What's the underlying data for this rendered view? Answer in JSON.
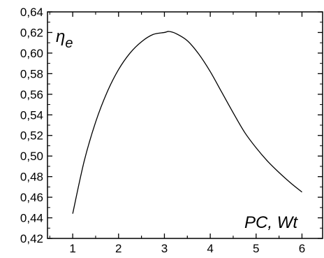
{
  "chart_data": {
    "type": "line",
    "ylabel_symbol": "η",
    "ylabel_subscript": "e",
    "xlabel": "PC, Wt",
    "xlim": [
      0.45,
      6.45
    ],
    "ylim": [
      0.42,
      0.64
    ],
    "xticks": [
      1,
      2,
      3,
      4,
      5,
      6
    ],
    "xtick_labels": [
      "1",
      "2",
      "3",
      "4",
      "5",
      "6"
    ],
    "yticks": [
      0.42,
      0.44,
      0.46,
      0.48,
      0.5,
      0.52,
      0.54,
      0.56,
      0.58,
      0.6,
      0.62,
      0.64
    ],
    "ytick_labels": [
      "0,42",
      "0,44",
      "0,46",
      "0,48",
      "0,50",
      "0,52",
      "0,54",
      "0,56",
      "0,58",
      "0,60",
      "0,62",
      "0,64"
    ],
    "series": [
      {
        "x": [
          1.0,
          1.25,
          1.5,
          1.75,
          2.0,
          2.25,
          2.5,
          2.75,
          3.0,
          3.1,
          3.25,
          3.5,
          3.75,
          4.0,
          4.25,
          4.5,
          4.75,
          5.0,
          5.25,
          5.5,
          5.75,
          6.0
        ],
        "y": [
          0.444,
          0.495,
          0.533,
          0.562,
          0.584,
          0.6,
          0.611,
          0.618,
          0.62,
          0.621,
          0.619,
          0.612,
          0.599,
          0.582,
          0.562,
          0.542,
          0.523,
          0.508,
          0.495,
          0.484,
          0.474,
          0.465
        ],
        "color": "#000000"
      }
    ]
  }
}
